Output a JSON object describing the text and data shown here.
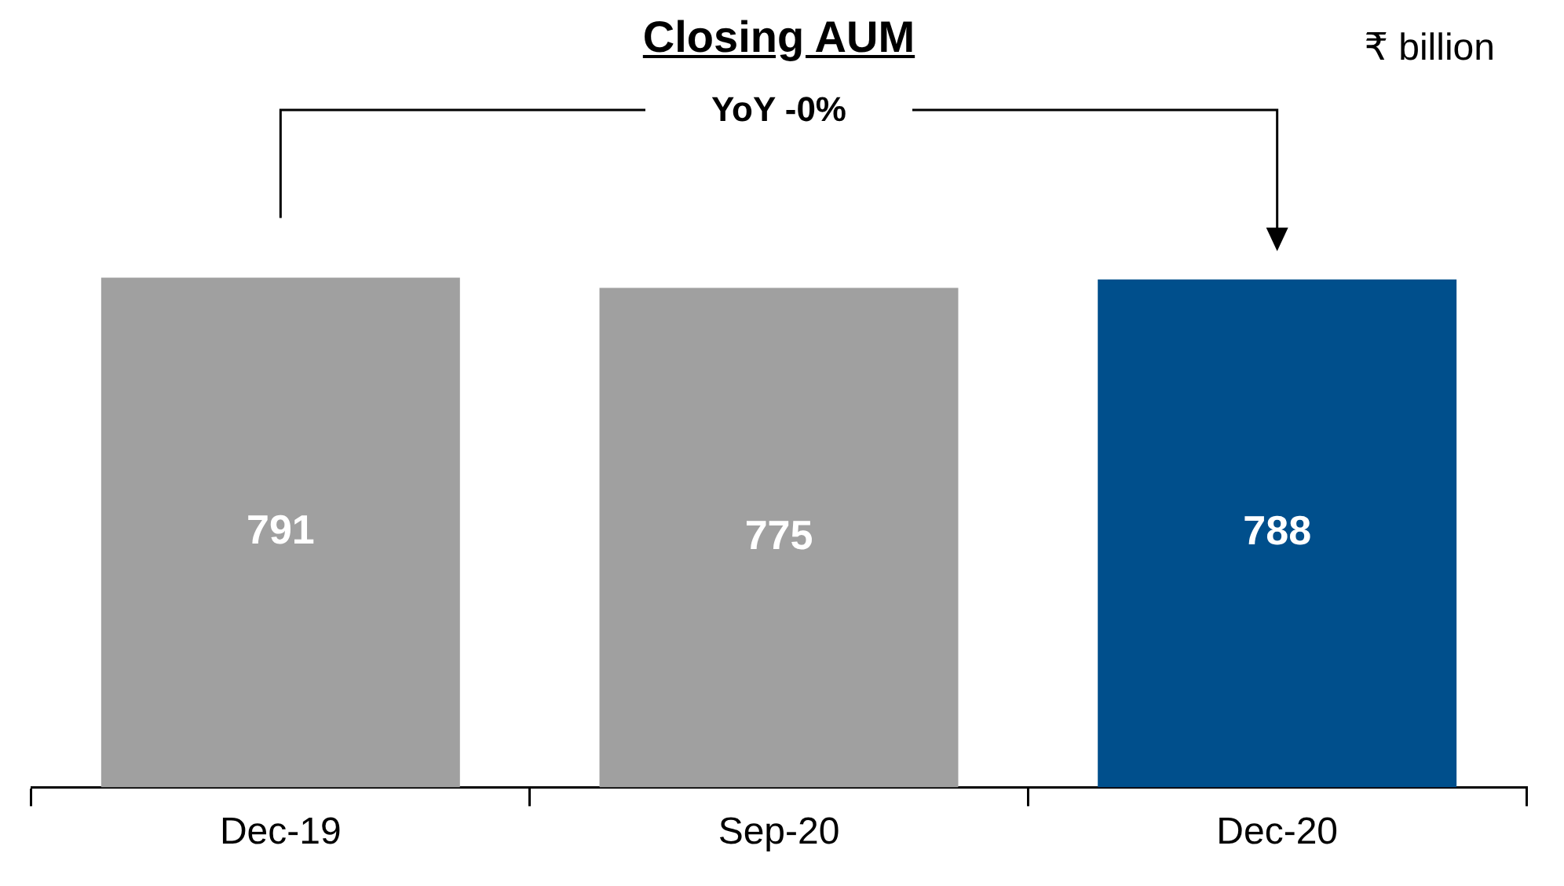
{
  "chart_data": {
    "type": "bar",
    "title": "Closing AUM",
    "categories": [
      "Dec-19",
      "Sep-20",
      "Dec-20"
    ],
    "values": [
      791,
      775,
      788
    ],
    "colors": [
      "#a0a0a0",
      "#a0a0a0",
      "#004f8c"
    ],
    "data_labels": true,
    "annotations": [
      "YoY -0%",
      "₹ billion"
    ]
  }
}
